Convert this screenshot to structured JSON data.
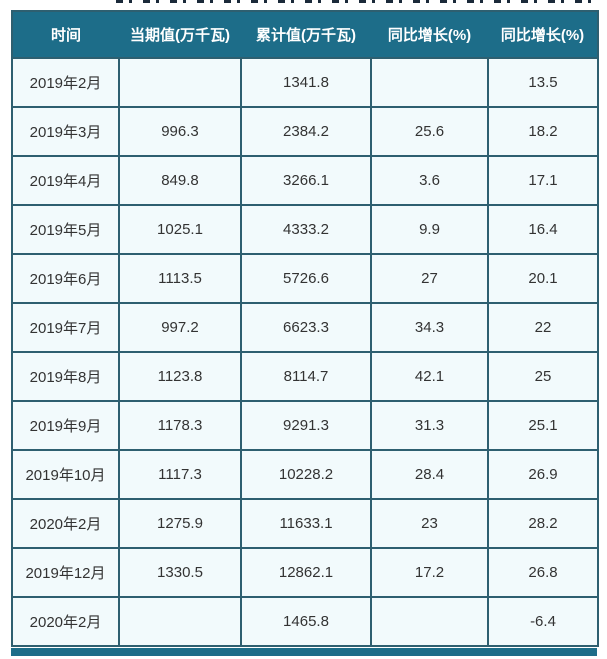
{
  "colors": {
    "header_bg": "#1d6d89",
    "header_text": "#ffffff",
    "row_bg": "#f2fafc",
    "border": "#2e5f70",
    "cell_text": "#333333"
  },
  "chart_data": {
    "type": "table",
    "columns": [
      "时间",
      "当期值(万千瓦)",
      "累计值(万千瓦)",
      "同比增长(%)",
      "同比增长(%)"
    ],
    "rows": [
      [
        "2019年2月",
        "",
        "1341.8",
        "",
        "13.5"
      ],
      [
        "2019年3月",
        "996.3",
        "2384.2",
        "25.6",
        "18.2"
      ],
      [
        "2019年4月",
        "849.8",
        "3266.1",
        "3.6",
        "17.1"
      ],
      [
        "2019年5月",
        "1025.1",
        "4333.2",
        "9.9",
        "16.4"
      ],
      [
        "2019年6月",
        "1113.5",
        "5726.6",
        "27",
        "20.1"
      ],
      [
        "2019年7月",
        "997.2",
        "6623.3",
        "34.3",
        "22"
      ],
      [
        "2019年8月",
        "1123.8",
        "8114.7",
        "42.1",
        "25"
      ],
      [
        "2019年9月",
        "1178.3",
        "9291.3",
        "31.3",
        "25.1"
      ],
      [
        "2019年10月",
        "1117.3",
        "10228.2",
        "28.4",
        "26.9"
      ],
      [
        "2020年2月",
        "1275.9",
        "11633.1",
        "23",
        "28.2"
      ],
      [
        "2019年12月",
        "1330.5",
        "12862.1",
        "17.2",
        "26.8"
      ],
      [
        "2020年2月",
        "",
        "1465.8",
        "",
        "-6.4"
      ]
    ]
  }
}
